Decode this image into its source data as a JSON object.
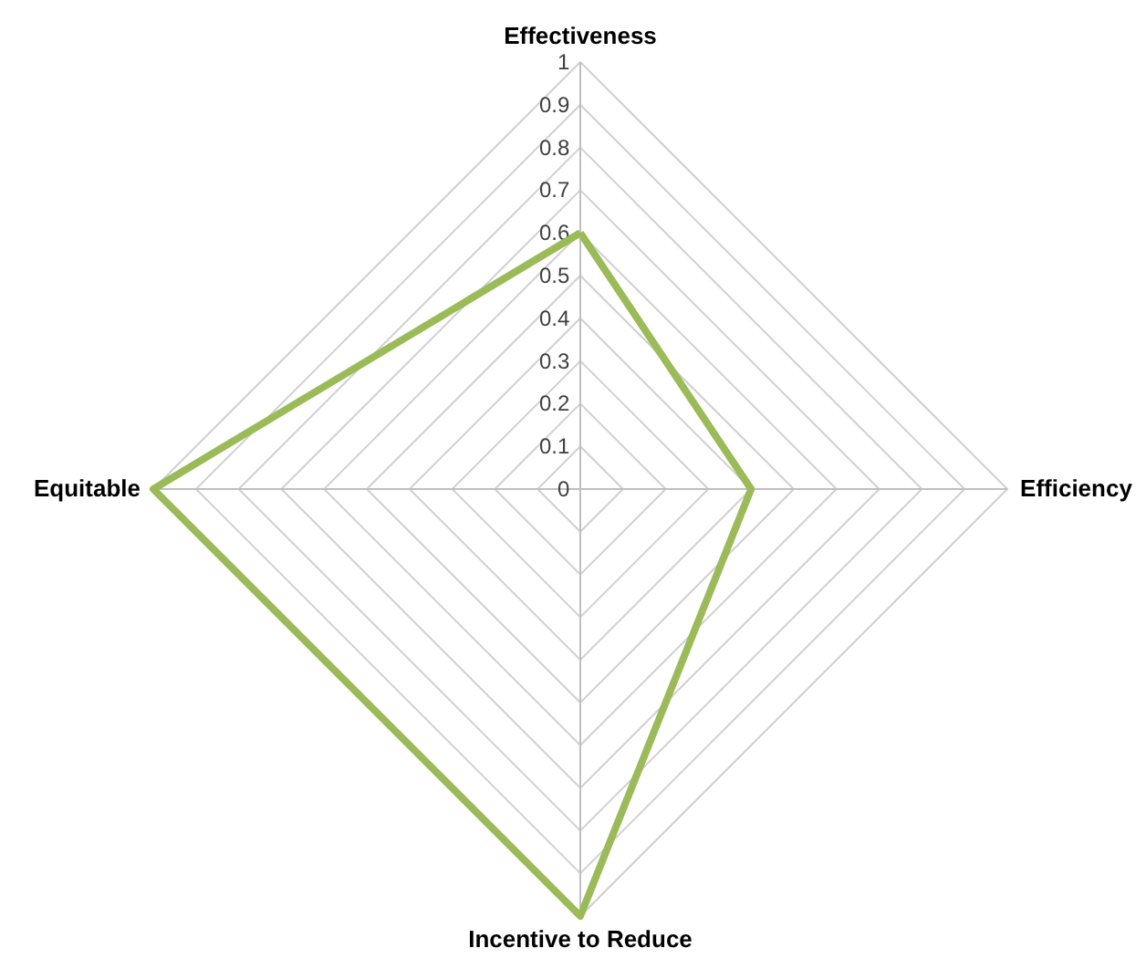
{
  "chart_data": {
    "type": "radar",
    "categories": [
      "Effectiveness",
      "Efficiency",
      "Incentive to Reduce",
      "Equitable"
    ],
    "series": [
      {
        "color": "#9bbb59",
        "values": [
          0.6,
          0.4,
          1.0,
          1.0
        ]
      }
    ],
    "ylim": [
      0,
      1
    ],
    "yticks": [
      0,
      0.1,
      0.2,
      0.3,
      0.4,
      0.5,
      0.6,
      0.7,
      0.8,
      0.9,
      1
    ],
    "grid": true
  }
}
